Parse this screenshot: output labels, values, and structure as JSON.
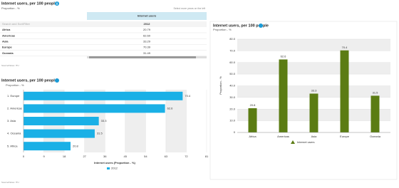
{
  "table": {
    "title": "Internet users, per 100 people",
    "subtitle": "Proportion - %",
    "column_header": "Internet users",
    "hint": "Select more years on the left",
    "search_placeholder": "Search and Sort/Filter",
    "year": "2012",
    "rows": [
      [
        "Africa",
        "20.79"
      ],
      [
        "Americas",
        "62.60"
      ],
      [
        "Asia",
        "33.29"
      ],
      [
        "Europe",
        "70.39"
      ],
      [
        "Oceania",
        "31.49"
      ]
    ],
    "source": "Source/Notes: ITU"
  },
  "chart_data": [
    {
      "type": "bar",
      "orientation": "horizontal",
      "title": "Internet users, per 100 people",
      "subtitle": "Proportion - %",
      "categories": [
        "1. Europe",
        "2. Americas",
        "3. Asia",
        "4. Oceania",
        "5. Africa"
      ],
      "series": [
        {
          "name": "2012",
          "color": "#1ab0e6",
          "values": [
            70.4,
            62.6,
            33.3,
            31.5,
            20.8
          ]
        }
      ],
      "xlim": [
        0,
        81
      ],
      "xticks": [
        0,
        9,
        18,
        27,
        36,
        45,
        54,
        63,
        72,
        81
      ],
      "x_label": "Internet users (Proportion - %)",
      "grid": "banded",
      "source": "Source/Notes: ITU"
    },
    {
      "type": "bar",
      "orientation": "vertical",
      "title": "Internet users, per 100 people",
      "subtitle": "Proportion - %",
      "categories": [
        "Africa",
        "Americas",
        "Asia",
        "Europe",
        "Oceania"
      ],
      "series": [
        {
          "name": "Internet users",
          "color": "#5b7c13",
          "values": [
            20.8,
            62.6,
            33.3,
            70.4,
            31.5
          ]
        }
      ],
      "ylim": [
        0,
        80
      ],
      "yticks": [
        0,
        {
          "value": 10,
          "label": "10.0"
        },
        {
          "value": 20,
          "label": "20.0"
        },
        {
          "value": 30,
          "label": "30.0"
        },
        {
          "value": 40,
          "label": "40.0"
        },
        {
          "value": 50,
          "label": "50.0"
        },
        {
          "value": 60,
          "label": "60.0"
        },
        {
          "value": 70,
          "label": "70.0"
        },
        {
          "value": 80,
          "label": "80.0"
        }
      ],
      "y_label": "Proportion - %",
      "grid": "banded"
    }
  ]
}
